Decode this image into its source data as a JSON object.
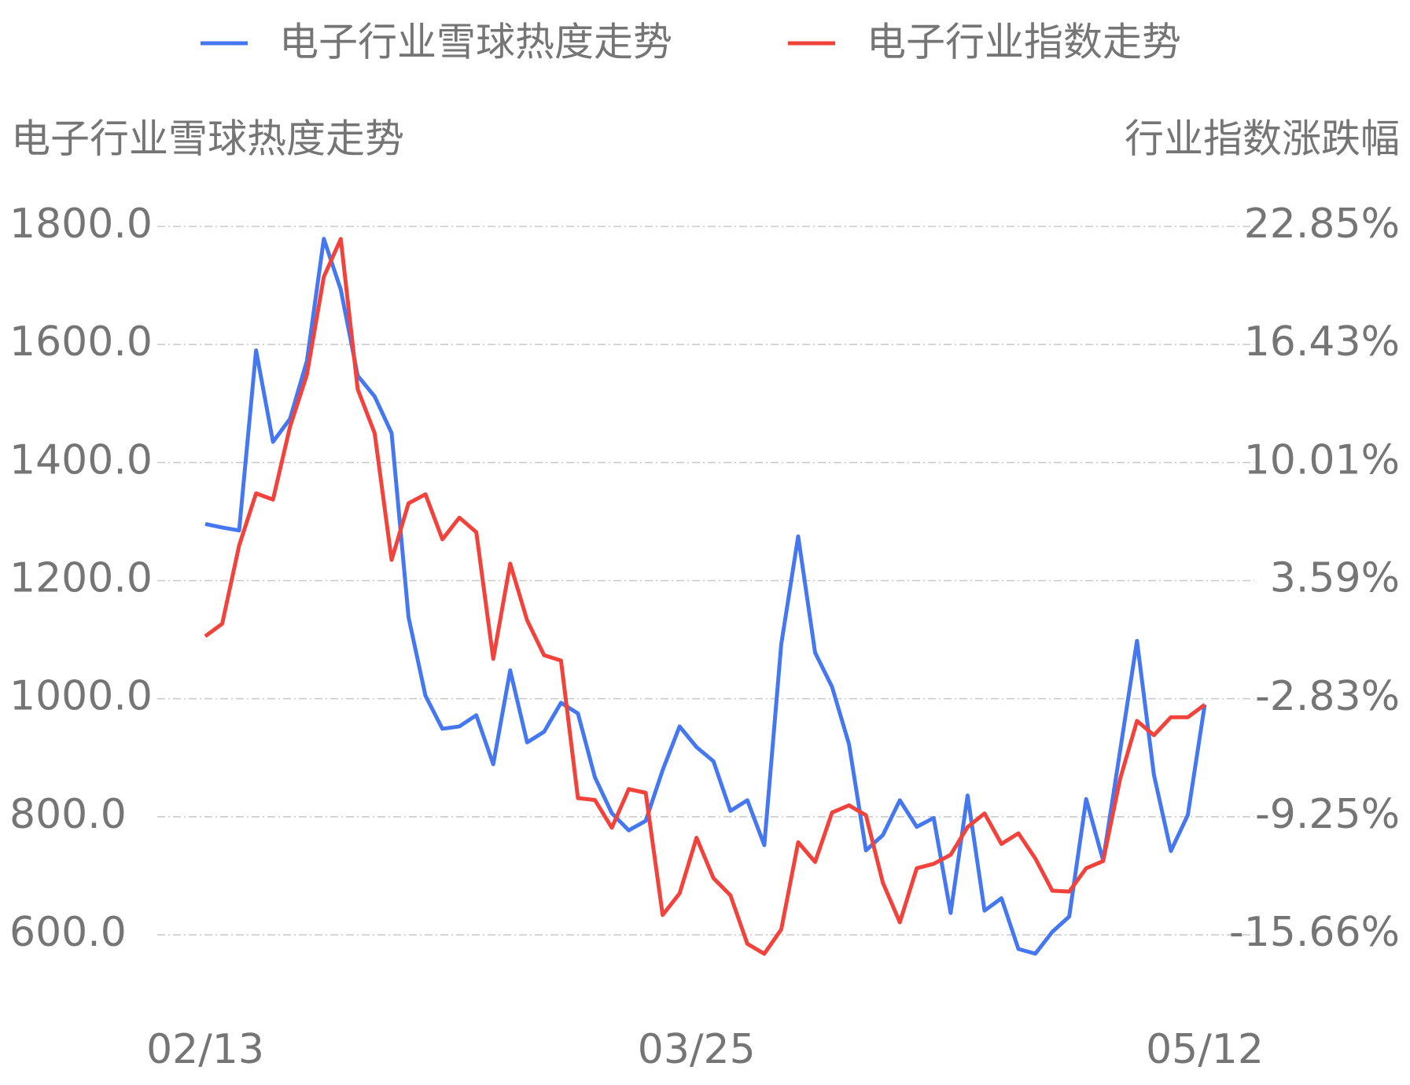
{
  "chart_data": {
    "type": "line",
    "legend": {
      "position": "top"
    },
    "y_title": "电子行业雪球热度走势",
    "y2_title": "行业指数涨跌幅",
    "categories": [
      "02/13",
      null,
      null,
      null,
      null,
      null,
      null,
      null,
      null,
      null,
      null,
      null,
      null,
      null,
      null,
      null,
      null,
      null,
      null,
      null,
      null,
      null,
      null,
      null,
      null,
      null,
      null,
      null,
      null,
      "03/25",
      null,
      null,
      null,
      null,
      null,
      null,
      null,
      null,
      null,
      null,
      null,
      null,
      null,
      null,
      null,
      null,
      null,
      null,
      null,
      null,
      null,
      null,
      null,
      null,
      null,
      null,
      null,
      null,
      null,
      "05/12"
    ],
    "series": [
      {
        "name": "电子行业雪球热度走势",
        "color": "#4477f0",
        "axis": "y",
        "values": [
          1296,
          1290,
          1285,
          1590,
          1435,
          1474,
          1572,
          1779,
          1693,
          1547,
          1512,
          1450,
          1138,
          1005,
          949,
          953,
          972,
          889,
          1048,
          926,
          944,
          993,
          975,
          867,
          806,
          777,
          793,
          879,
          953,
          918,
          894,
          810,
          828,
          752,
          1092,
          1275,
          1078,
          1020,
          923,
          743,
          769,
          828,
          783,
          798,
          637,
          836,
          641,
          662,
          576,
          568,
          605,
          631,
          830,
          726,
          911,
          1098,
          871,
          742,
          803,
          990
        ]
      },
      {
        "name": "电子行业指数走势",
        "color": "#f2423c",
        "axis": "y2",
        "values": [
          0.57,
          1.25,
          5.5,
          8.34,
          8.0,
          11.95,
          14.79,
          20.11,
          22.17,
          14.0,
          11.61,
          4.72,
          7.8,
          8.29,
          5.84,
          7.02,
          6.23,
          -0.66,
          4.52,
          1.44,
          -0.46,
          -0.75,
          -8.23,
          -8.33,
          -9.84,
          -7.74,
          -7.94,
          -14.58,
          -13.41,
          -10.38,
          -12.58,
          -13.51,
          -16.15,
          -16.69,
          -15.37,
          -10.63,
          -11.7,
          -9.01,
          -8.62,
          -9.16,
          -12.83,
          -14.98,
          -12.04,
          -11.8,
          -11.31,
          -9.8,
          -9.06,
          -10.72,
          -10.14,
          -11.51,
          -13.26,
          -13.31,
          -12.04,
          -11.65,
          -7.2,
          -4.03,
          -4.81,
          -3.83,
          -3.83,
          -3.15
        ]
      }
    ],
    "ylim": [
      600,
      1800
    ],
    "yticks": [
      {
        "value": 1800,
        "label": "1800.0"
      },
      {
        "value": 1600,
        "label": "1600.0"
      },
      {
        "value": 1400,
        "label": "1400.0"
      },
      {
        "value": 1200,
        "label": "1200.0"
      },
      {
        "value": 1000,
        "label": "1000.0"
      },
      {
        "value": 800,
        "label": "800.0"
      },
      {
        "value": 600,
        "label": "600.0"
      }
    ],
    "y2lim": [
      -15.66,
      22.85
    ],
    "y2ticks": [
      {
        "value": 22.85,
        "label": "22.85%"
      },
      {
        "value": 16.43,
        "label": "16.43%"
      },
      {
        "value": 10.01,
        "label": "10.01%"
      },
      {
        "value": 3.59,
        "label": "3.59%"
      },
      {
        "value": -2.83,
        "label": "-2.83%"
      },
      {
        "value": -9.25,
        "label": "-9.25%"
      },
      {
        "value": -15.66,
        "label": "-15.66%"
      }
    ],
    "grid": true
  }
}
